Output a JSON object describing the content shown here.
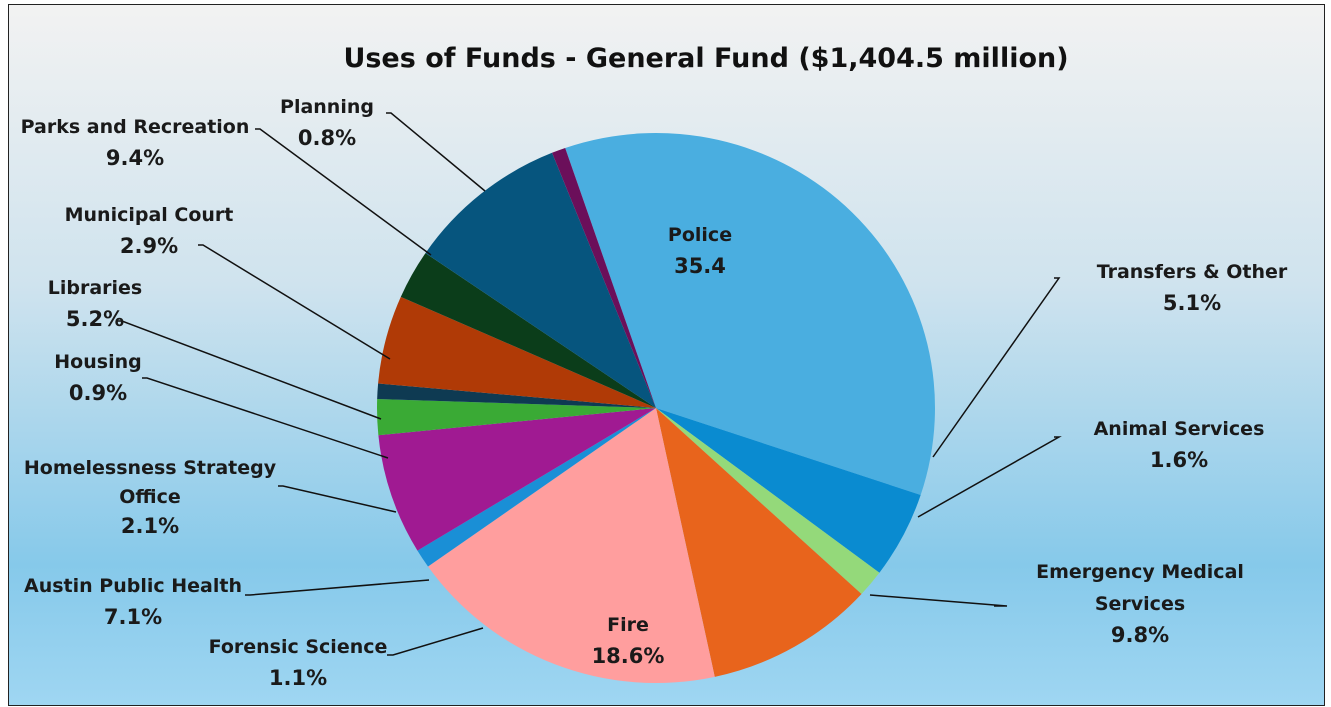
{
  "chart_data": {
    "type": "pie",
    "title": "Uses of Funds - General Fund ($1,404.5 million)",
    "slices": [
      {
        "label": "Police",
        "value_text": "35.4",
        "value": 35.4,
        "color": "#4aaee0"
      },
      {
        "label": "Transfers & Other",
        "value_text": "5.1%",
        "value": 5.1,
        "color": "#0a8bd0"
      },
      {
        "label": "Animal Services",
        "value_text": "1.6%",
        "value": 1.6,
        "color": "#94d97a"
      },
      {
        "label": "Emergency Medical Services",
        "value_text": "9.8%",
        "value": 9.8,
        "color": "#e8641c"
      },
      {
        "label": "Fire",
        "value_text": "18.6%",
        "value": 18.6,
        "color": "#ff9e9e"
      },
      {
        "label": "Forensic Science",
        "value_text": "1.1%",
        "value": 1.1,
        "color": "#1a8fd6"
      },
      {
        "label": "Austin Public Health",
        "value_text": "7.1%",
        "value": 7.1,
        "color": "#a01a92"
      },
      {
        "label": "Homelessness Strategy Office",
        "value_text": "2.1%",
        "value": 2.1,
        "color": "#3aaa35"
      },
      {
        "label": "Housing",
        "value_text": "0.9%",
        "value": 0.9,
        "color": "#0e3a52"
      },
      {
        "label": "Libraries",
        "value_text": "5.2%",
        "value": 5.2,
        "color": "#b03a06"
      },
      {
        "label": "Municipal Court",
        "value_text": "2.9%",
        "value": 2.9,
        "color": "#0b3d1a"
      },
      {
        "label": "Parks and Recreation",
        "value_text": "9.4%",
        "value": 9.4,
        "color": "#06557e"
      },
      {
        "label": "Planning",
        "value_text": "0.8%",
        "value": 0.8,
        "color": "#6b0f5a"
      }
    ]
  }
}
